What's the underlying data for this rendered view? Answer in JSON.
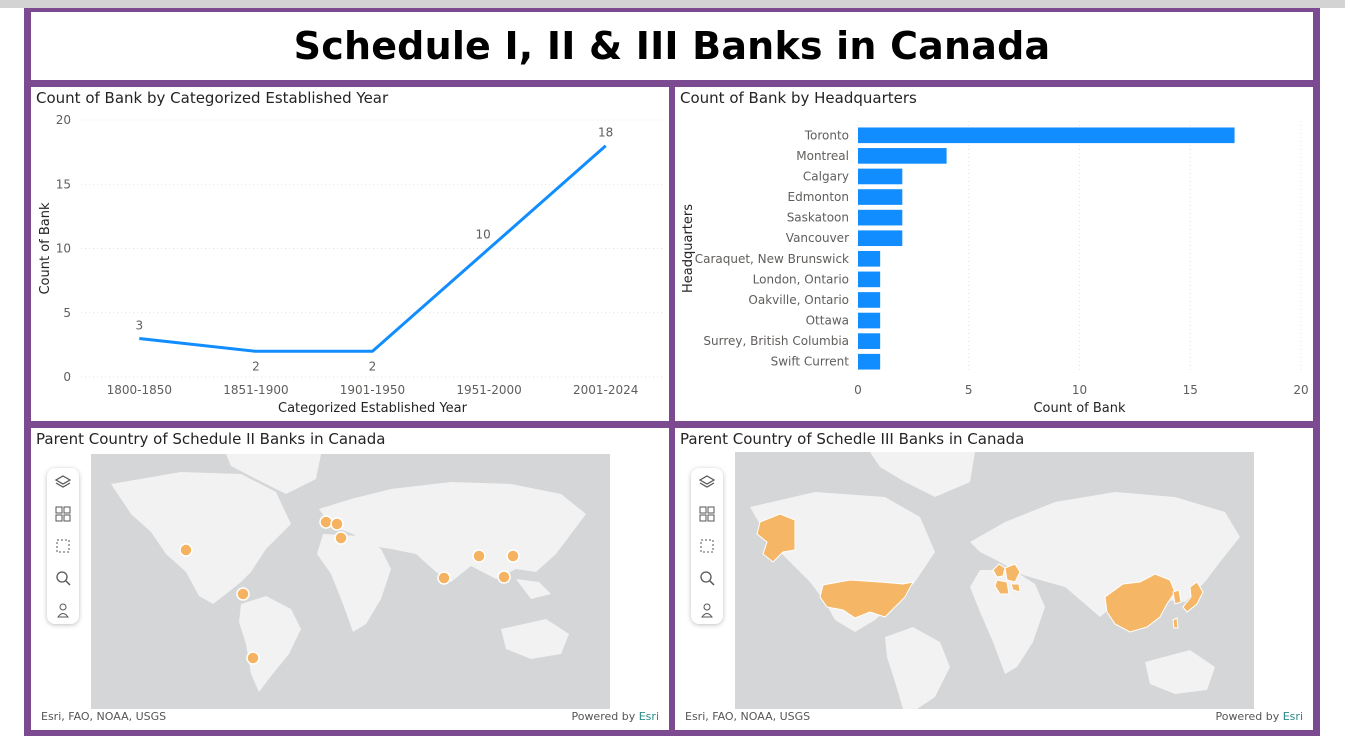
{
  "report": {
    "title": "Schedule I, II & III Banks in Canada"
  },
  "line_chart": {
    "title": "Count of Bank by Categorized Established Year"
  },
  "bar_chart": {
    "title": "Count of Bank by Headquarters"
  },
  "map_schedule2": {
    "title": "Parent Country of Schedule II Banks in Canada",
    "attribution": "Esri, FAO, NOAA, USGS",
    "powered_by": "Powered by",
    "esri": "Esri",
    "tools": [
      "layers-icon",
      "qr-select-icon",
      "rect-select-icon",
      "zoom-icon",
      "person-icon"
    ],
    "colors": {
      "land": "#f2f2f2",
      "water": "#d4d6d8",
      "marker": "#f5b361"
    }
  },
  "map_schedule3": {
    "title": "Parent Country of Schedle III Banks in Canada",
    "attribution": "Esri, FAO, NOAA, USGS",
    "powered_by": "Powered by",
    "esri": "Esri",
    "tools": [
      "layers-icon",
      "qr-select-icon",
      "rect-select-icon",
      "zoom-icon",
      "person-icon"
    ],
    "colors": {
      "land": "#f2f2f2",
      "water": "#d4d6d8",
      "fill": "#f5b766"
    }
  },
  "colors": {
    "accent": "#118dff",
    "frame": "#7b4a91",
    "text": "#252423"
  },
  "chart_data": [
    {
      "type": "line",
      "title": "Count of Bank by Categorized Established Year",
      "xlabel": "Categorized Established Year",
      "ylabel": "Count of Bank",
      "categories": [
        "1800-1850",
        "1851-1900",
        "1901-1950",
        "1951-2000",
        "2001-2024"
      ],
      "values": [
        3,
        2,
        2,
        10,
        18
      ],
      "ylim": [
        0,
        20
      ],
      "yticks": [
        0,
        5,
        10,
        15,
        20
      ],
      "grid": true,
      "color": "#118dff"
    },
    {
      "type": "bar",
      "orientation": "horizontal",
      "title": "Count of Bank by Headquarters",
      "xlabel": "Count of Bank",
      "ylabel": "Headquarters",
      "categories": [
        "Toronto",
        "Montreal",
        "Calgary",
        "Edmonton",
        "Saskatoon",
        "Vancouver",
        "Caraquet, New Brunswick",
        "London, Ontario",
        "Oakville, Ontario",
        "Ottawa",
        "Surrey, British Columbia",
        "Swift Current"
      ],
      "values": [
        17,
        4,
        2,
        2,
        2,
        2,
        1,
        1,
        1,
        1,
        1,
        1
      ],
      "xlim": [
        0,
        20
      ],
      "xticks": [
        0,
        5,
        10,
        15,
        20
      ],
      "grid": true,
      "color": "#118dff"
    }
  ]
}
